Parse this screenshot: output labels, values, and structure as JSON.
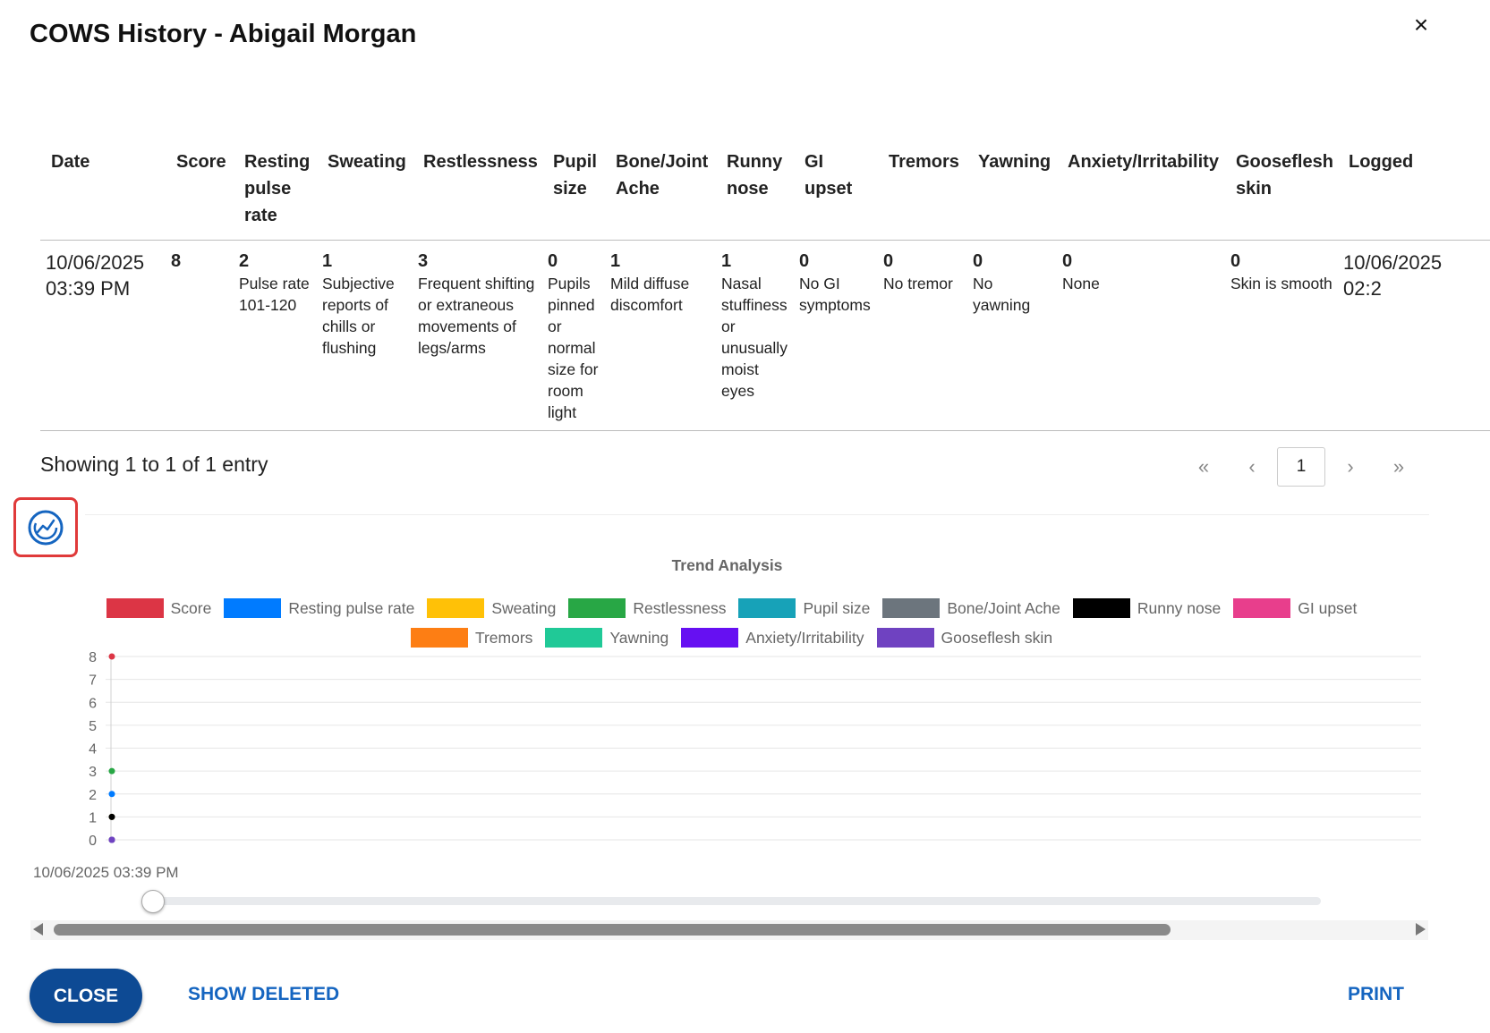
{
  "dialog": {
    "title": "COWS History - Abigail Morgan",
    "close_icon": "×"
  },
  "table": {
    "headers": [
      "Date",
      "Score",
      "Resting pulse rate",
      "Sweating",
      "Restlessness",
      "Pupil size",
      "Bone/Joint Ache",
      "Runny nose",
      "GI upset",
      "Tremors",
      "Yawning",
      "Anxiety/Irritability",
      "Gooseflesh skin",
      "Logged"
    ],
    "rows": [
      {
        "date": "10/06/2025 03:39 PM",
        "score": "8",
        "cells": [
          {
            "score": "2",
            "text": "Pulse rate 101-120"
          },
          {
            "score": "1",
            "text": "Subjective reports of chills or flushing"
          },
          {
            "score": "3",
            "text": "Frequent shifting or extraneous movements of legs/arms"
          },
          {
            "score": "0",
            "text": "Pupils pinned or normal size for room light"
          },
          {
            "score": "1",
            "text": "Mild diffuse discomfort"
          },
          {
            "score": "1",
            "text": "Nasal stuffiness or unusually moist eyes"
          },
          {
            "score": "0",
            "text": "No GI symptoms"
          },
          {
            "score": "0",
            "text": "No tremor"
          },
          {
            "score": "0",
            "text": "No yawning"
          },
          {
            "score": "0",
            "text": "None"
          },
          {
            "score": "0",
            "text": "Skin is smooth"
          }
        ],
        "logged": "10/06/2025 02:2"
      }
    ]
  },
  "pagination": {
    "showing": "Showing 1 to 1 of 1 entry",
    "first": "«",
    "prev": "‹",
    "current": "1",
    "next": "›",
    "last": "»"
  },
  "trend_button": {
    "icon": "trend-analysis-icon"
  },
  "chart_data": {
    "type": "line",
    "title": "Trend Analysis",
    "categories": [
      "10/06/2025 03:39 PM"
    ],
    "ylim": [
      0,
      8
    ],
    "yticks": [
      0,
      1,
      2,
      3,
      4,
      5,
      6,
      7,
      8
    ],
    "grid": true,
    "legend_position": "top",
    "series": [
      {
        "name": "Score",
        "color": "#dc3545",
        "values": [
          8
        ]
      },
      {
        "name": "Resting pulse rate",
        "color": "#007bff",
        "values": [
          2
        ]
      },
      {
        "name": "Sweating",
        "color": "#ffc107",
        "values": [
          1
        ]
      },
      {
        "name": "Restlessness",
        "color": "#28a745",
        "values": [
          3
        ]
      },
      {
        "name": "Pupil size",
        "color": "#17a2b8",
        "values": [
          0
        ]
      },
      {
        "name": "Bone/Joint Ache",
        "color": "#6c757d",
        "values": [
          1
        ]
      },
      {
        "name": "Runny nose",
        "color": "#000000",
        "values": [
          1
        ]
      },
      {
        "name": "GI upset",
        "color": "#e83e8c",
        "values": [
          0
        ]
      },
      {
        "name": "Tremors",
        "color": "#fd7e14",
        "values": [
          0
        ]
      },
      {
        "name": "Yawning",
        "color": "#20c997",
        "values": [
          0
        ]
      },
      {
        "name": "Anxiety/Irritability",
        "color": "#6610f2",
        "values": [
          0
        ]
      },
      {
        "name": "Gooseflesh skin",
        "color": "#6f42c1",
        "values": [
          0
        ]
      }
    ]
  },
  "footer": {
    "close_label": "CLOSE",
    "show_deleted_label": "SHOW DELETED",
    "print_label": "PRINT"
  }
}
